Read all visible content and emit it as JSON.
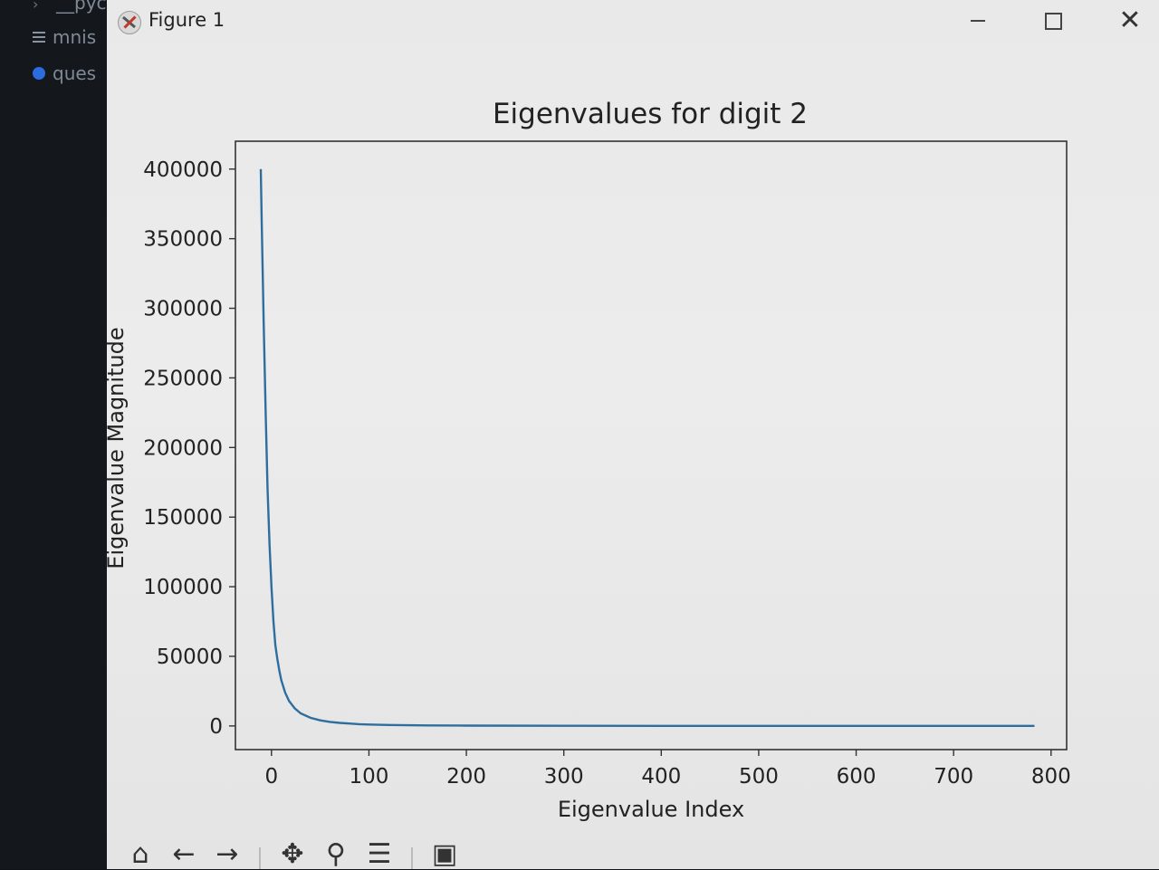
{
  "editor": {
    "files": [
      "__pyc",
      "mnis",
      "ques"
    ]
  },
  "window": {
    "title": "Figure 1",
    "close_glyph": "✕"
  },
  "toolbar": {
    "tools": [
      {
        "name": "home-icon",
        "glyph": "⌂"
      },
      {
        "name": "back-icon",
        "glyph": "←"
      },
      {
        "name": "forward-icon",
        "glyph": "→"
      },
      {
        "name": "pan-icon",
        "glyph": "✥"
      },
      {
        "name": "zoom-icon",
        "glyph": "⚲"
      },
      {
        "name": "configure-subplots-icon",
        "glyph": "☰"
      },
      {
        "name": "save-icon",
        "glyph": "▣"
      }
    ]
  },
  "colors": {
    "line": "#2e6e9e",
    "axes_edge": "#333333"
  },
  "chart_data": {
    "type": "line",
    "title": "Eigenvalues for digit 2",
    "xlabel": "Eigenvalue Index",
    "ylabel": "Eigenvalue Magnitude",
    "xlim": [
      -37,
      816
    ],
    "ylim": [
      -17000,
      420000
    ],
    "xticks": [
      0,
      100,
      200,
      300,
      400,
      500,
      600,
      700,
      800
    ],
    "yticks": [
      0,
      50000,
      100000,
      150000,
      200000,
      250000,
      300000,
      350000,
      400000
    ],
    "ytick_labels": [
      "0",
      "50000",
      "100000",
      "150000",
      "200000",
      "250000",
      "300000",
      "350000",
      "400000"
    ],
    "grid": false,
    "series": [
      {
        "x": [
          -11,
          -10,
          -8,
          -6,
          -4,
          -2,
          0,
          2,
          4,
          6,
          8,
          10,
          14,
          18,
          24,
          30,
          40,
          50,
          60,
          70,
          80,
          90,
          100,
          120,
          140,
          160,
          200,
          300,
          400,
          500,
          600,
          700,
          783
        ],
        "values": [
          400000,
          360000,
          290000,
          225000,
          170000,
          130000,
          100000,
          75000,
          58000,
          48000,
          40000,
          33000,
          24000,
          18000,
          12500,
          9000,
          5800,
          4000,
          2900,
          2200,
          1700,
          1300,
          1000,
          700,
          500,
          380,
          250,
          120,
          70,
          40,
          25,
          15,
          10
        ]
      }
    ]
  }
}
